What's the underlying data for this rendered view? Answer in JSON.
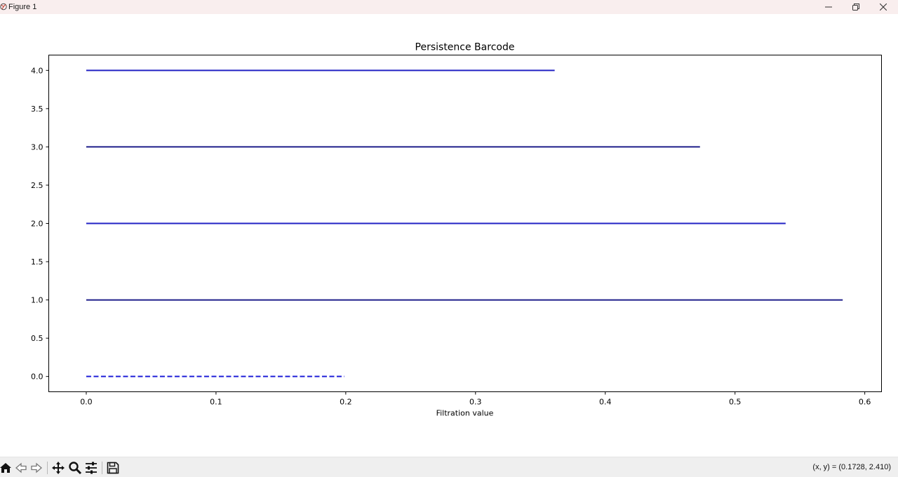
{
  "window": {
    "title": "Figure 1"
  },
  "chart_data": {
    "type": "barcode",
    "title": "Persistence Barcode",
    "xlabel": "Filtration value",
    "ylabel": "",
    "xlim": [
      -0.0289,
      0.6129
    ],
    "ylim": [
      -0.2,
      4.2
    ],
    "x_ticks": [
      0.0,
      0.1,
      0.2,
      0.3,
      0.4,
      0.5,
      0.6
    ],
    "x_tick_labels": [
      "0.0",
      "0.1",
      "0.2",
      "0.3",
      "0.4",
      "0.5",
      "0.6"
    ],
    "y_ticks": [
      0.0,
      0.5,
      1.0,
      1.5,
      2.0,
      2.5,
      3.0,
      3.5,
      4.0
    ],
    "y_tick_labels": [
      "0.0",
      "0.5",
      "1.0",
      "1.5",
      "2.0",
      "2.5",
      "3.0",
      "3.5",
      "4.0"
    ],
    "grid": false,
    "bars": [
      {
        "index": 0,
        "birth": 0.0,
        "death": 0.199,
        "style": "dashed",
        "color": "#1f1fd8"
      },
      {
        "index": 1,
        "birth": 0.0,
        "death": 0.583,
        "style": "solid",
        "color": "#1f1f8a"
      },
      {
        "index": 2,
        "birth": 0.0,
        "death": 0.539,
        "style": "solid",
        "color": "#2222c4"
      },
      {
        "index": 3,
        "birth": 0.0,
        "death": 0.473,
        "style": "solid",
        "color": "#1f1f8a"
      },
      {
        "index": 4,
        "birth": 0.0,
        "death": 0.361,
        "style": "solid",
        "color": "#2222c4"
      }
    ]
  },
  "toolbar": {
    "tools": [
      {
        "name": "home-icon",
        "label": "Home"
      },
      {
        "name": "back-icon",
        "label": "Back"
      },
      {
        "name": "forward-icon",
        "label": "Forward"
      },
      {
        "name": "pan-icon",
        "label": "Pan"
      },
      {
        "name": "zoom-icon",
        "label": "Zoom"
      },
      {
        "name": "configure-subplots-icon",
        "label": "Configure subplots"
      },
      {
        "name": "save-icon",
        "label": "Save"
      }
    ],
    "coords": "(x, y) = (0.1728, 2.410)"
  }
}
